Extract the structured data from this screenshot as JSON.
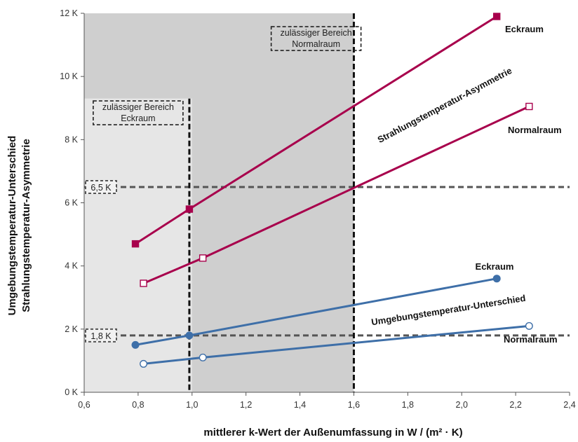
{
  "chart_data": {
    "type": "line",
    "xlabel": "mittlerer k-Wert der Außenumfassung in W / (m² · K)",
    "ylabel_lines": [
      "Umgebungstemperatur-Unterschied",
      "Strahlungstemperatur-Asymmetrie"
    ],
    "xlim": [
      0.6,
      2.4
    ],
    "ylim": [
      0,
      12
    ],
    "x_ticks": [
      {
        "value": 0.6,
        "label": "0,6"
      },
      {
        "value": 0.8,
        "label": "0,8"
      },
      {
        "value": 1.0,
        "label": "1,0"
      },
      {
        "value": 1.2,
        "label": "1,2"
      },
      {
        "value": 1.4,
        "label": "1,4"
      },
      {
        "value": 1.6,
        "label": "1,6"
      },
      {
        "value": 1.8,
        "label": "1,8"
      },
      {
        "value": 2.0,
        "label": "2,0"
      },
      {
        "value": 2.2,
        "label": "2,2"
      },
      {
        "value": 2.4,
        "label": "2,4"
      }
    ],
    "y_ticks": [
      {
        "value": 0,
        "label": "0 K"
      },
      {
        "value": 2,
        "label": "2 K"
      },
      {
        "value": 4,
        "label": "4 K"
      },
      {
        "value": 6,
        "label": "6 K"
      },
      {
        "value": 8,
        "label": "8 K"
      },
      {
        "value": 10,
        "label": "10 K"
      },
      {
        "value": 12,
        "label": "12 K"
      }
    ],
    "regions": [
      {
        "id": "light",
        "x": [
          0.6,
          1.6
        ],
        "y": [
          0,
          9.3
        ],
        "color": "#e6e6e6"
      },
      {
        "id": "mid",
        "x": [
          1.0,
          1.6
        ],
        "y": [
          0,
          12
        ],
        "color": "#cfcfcf"
      },
      {
        "id": "top",
        "x": [
          0.6,
          1.6
        ],
        "y": [
          9.3,
          12
        ],
        "color": "#cfcfcf"
      }
    ],
    "vlines": [
      {
        "x": 0.99,
        "y_top": 9.3
      },
      {
        "x": 1.6,
        "y_top": 12
      }
    ],
    "hlines": [
      {
        "y": 6.5,
        "label": "6,5 K"
      },
      {
        "y": 1.8,
        "label": "1,8 K"
      }
    ],
    "annotations": [
      {
        "id": "eck-range",
        "lines": [
          "zulässiger Bereich",
          "Eckraum"
        ],
        "x": 0.8,
        "y": 8.85
      },
      {
        "id": "normal-range",
        "lines": [
          "zulässiger Bereich",
          "Normalraum"
        ],
        "x": 1.46,
        "y": 11.2
      }
    ],
    "series": [
      {
        "id": "str-eck",
        "color": "#a8004c",
        "marker": "square",
        "filled": true,
        "x": [
          0.79,
          0.99,
          2.13
        ],
        "y": [
          4.7,
          5.8,
          11.9
        ],
        "label": "Eckraum"
      },
      {
        "id": "str-normal",
        "color": "#a8004c",
        "marker": "square",
        "filled": false,
        "x": [
          0.82,
          1.04,
          2.25
        ],
        "y": [
          3.45,
          4.25,
          9.05
        ],
        "label": "Normalraum"
      },
      {
        "id": "umg-eck",
        "color": "#3e6fa8",
        "marker": "circle",
        "filled": true,
        "x": [
          0.79,
          0.99,
          2.13
        ],
        "y": [
          1.5,
          1.8,
          3.6
        ],
        "label": "Eckraum"
      },
      {
        "id": "umg-normal",
        "color": "#3e6fa8",
        "marker": "circle",
        "filled": false,
        "x": [
          0.82,
          1.04,
          2.25
        ],
        "y": [
          0.9,
          1.1,
          2.1
        ],
        "label": "Normalraum"
      }
    ],
    "group_labels": {
      "strahlung": "Strahlungstemperatur-Asymmetrie",
      "umgebung": "Umgebungstemperatur-Unterschied"
    }
  }
}
